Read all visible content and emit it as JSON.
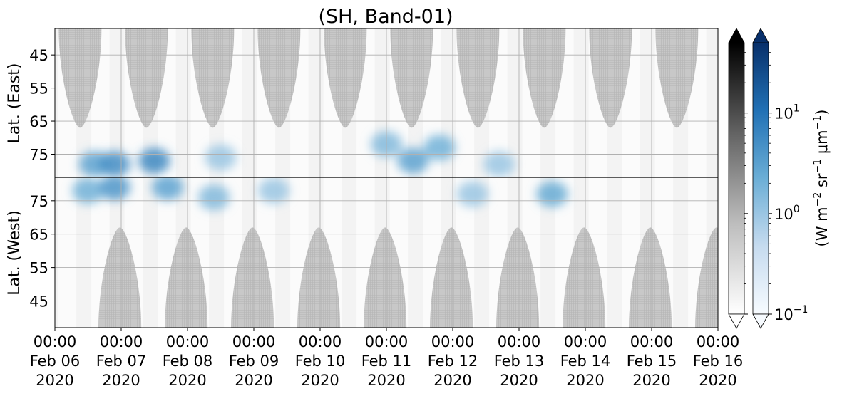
{
  "chart_data": {
    "type": "heatmap",
    "title": "(SH, Band-01)",
    "panels": [
      {
        "name": "east",
        "ylabel": "Lat. (East)",
        "ylim": [
          37,
          82
        ],
        "ticks": [
          45,
          55,
          65,
          75
        ],
        "orientation": "increasing-down"
      },
      {
        "name": "west",
        "ylabel": "Lat. (West)",
        "ylim": [
          37,
          82
        ],
        "ticks": [
          75,
          65,
          55,
          45
        ],
        "orientation": "increasing-up"
      }
    ],
    "x": {
      "range": [
        "2020-02-06T00:00",
        "2020-02-16T00:00"
      ],
      "ticks": [
        {
          "time": "00:00",
          "day": "Feb 06",
          "year": "2020"
        },
        {
          "time": "00:00",
          "day": "Feb 07",
          "year": "2020"
        },
        {
          "time": "00:00",
          "day": "Feb 08",
          "year": "2020"
        },
        {
          "time": "00:00",
          "day": "Feb 09",
          "year": "2020"
        },
        {
          "time": "00:00",
          "day": "Feb 10",
          "year": "2020"
        },
        {
          "time": "00:00",
          "day": "Feb 11",
          "year": "2020"
        },
        {
          "time": "00:00",
          "day": "Feb 12",
          "year": "2020"
        },
        {
          "time": "00:00",
          "day": "Feb 13",
          "year": "2020"
        },
        {
          "time": "00:00",
          "day": "Feb 14",
          "year": "2020"
        },
        {
          "time": "00:00",
          "day": "Feb 15",
          "year": "2020"
        },
        {
          "time": "00:00",
          "day": "Feb 16",
          "year": "2020"
        }
      ]
    },
    "colorbars": [
      {
        "name": "grey",
        "scale": "log",
        "range": [
          0.1,
          50
        ],
        "colors": [
          "#ffffff",
          "#bdbdbd",
          "#636363",
          "#000000"
        ]
      },
      {
        "name": "blue",
        "scale": "log",
        "range": [
          0.1,
          50
        ],
        "colors": [
          "#f7fbff",
          "#c6dbef",
          "#6baed6",
          "#2171b5",
          "#08306b"
        ],
        "ticks": [
          {
            "base": "10",
            "exp": "1",
            "value": 10
          },
          {
            "base": "10",
            "exp": "0",
            "value": 1
          },
          {
            "base": "10",
            "exp": "−1",
            "value": 0.1
          }
        ]
      }
    ],
    "colorbar_label": {
      "open": "(W m",
      "e1": "−2",
      "mid1": " sr",
      "e2": "−1",
      "mid2": " μm",
      "e3": "−1",
      "close": ")"
    },
    "no_data_color": "#c6c6c6",
    "blue_patches": [
      {
        "panel": "east",
        "day": 6.6,
        "lat": 78,
        "value": 3
      },
      {
        "panel": "east",
        "day": 6.9,
        "lat": 78,
        "value": 5
      },
      {
        "panel": "east",
        "day": 7.5,
        "lat": 77,
        "value": 6
      },
      {
        "panel": "east",
        "day": 8.5,
        "lat": 76,
        "value": 1
      },
      {
        "panel": "east",
        "day": 11.0,
        "lat": 72,
        "value": 1.5
      },
      {
        "panel": "east",
        "day": 11.4,
        "lat": 77,
        "value": 3
      },
      {
        "panel": "east",
        "day": 11.8,
        "lat": 73,
        "value": 2
      },
      {
        "panel": "east",
        "day": 12.7,
        "lat": 78,
        "value": 1
      },
      {
        "panel": "west",
        "day": 6.5,
        "lat": 78,
        "value": 2
      },
      {
        "panel": "west",
        "day": 6.9,
        "lat": 79,
        "value": 4
      },
      {
        "panel": "west",
        "day": 7.7,
        "lat": 79,
        "value": 3
      },
      {
        "panel": "west",
        "day": 8.4,
        "lat": 76,
        "value": 1.5
      },
      {
        "panel": "west",
        "day": 9.3,
        "lat": 78,
        "value": 1
      },
      {
        "panel": "west",
        "day": 12.3,
        "lat": 77,
        "value": 1
      },
      {
        "panel": "west",
        "day": 13.5,
        "lat": 77,
        "value": 2.5
      }
    ]
  }
}
